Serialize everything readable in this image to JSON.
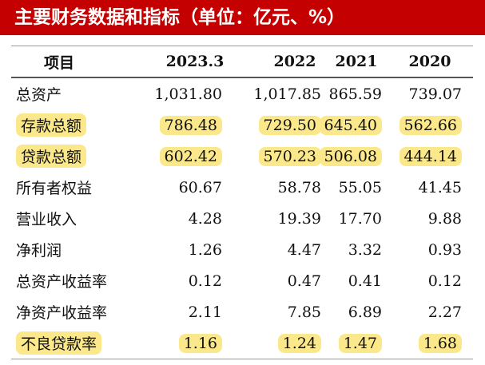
{
  "header": {
    "title": "主要财务数据和指标（单位：亿元、%）"
  },
  "table": {
    "columns": [
      "项目",
      "2023.3",
      "2022",
      "2021",
      "2020"
    ],
    "rows": [
      {
        "label": "总资产",
        "values": [
          "1,031.80",
          "1,017.85",
          "865.59",
          "739.07"
        ],
        "highlight": false
      },
      {
        "label": "存款总额",
        "values": [
          "786.48",
          "729.50",
          "645.40",
          "562.66"
        ],
        "highlight": true
      },
      {
        "label": "贷款总额",
        "values": [
          "602.42",
          "570.23",
          "506.08",
          "444.14"
        ],
        "highlight": true
      },
      {
        "label": "所有者权益",
        "values": [
          "60.67",
          "58.78",
          "55.05",
          "41.45"
        ],
        "highlight": false
      },
      {
        "label": "营业收入",
        "values": [
          "4.28",
          "19.39",
          "17.70",
          "9.88"
        ],
        "highlight": false
      },
      {
        "label": "净利润",
        "values": [
          "1.26",
          "4.47",
          "3.32",
          "0.93"
        ],
        "highlight": false
      },
      {
        "label": "总资产收益率",
        "values": [
          "0.12",
          "0.47",
          "0.41",
          "0.12"
        ],
        "highlight": false
      },
      {
        "label": "净资产收益率",
        "values": [
          "2.11",
          "7.85",
          "6.89",
          "2.27"
        ],
        "highlight": false
      },
      {
        "label": "不良贷款率",
        "values": [
          "1.16",
          "1.24",
          "1.47",
          "1.68"
        ],
        "highlight": true
      }
    ]
  }
}
